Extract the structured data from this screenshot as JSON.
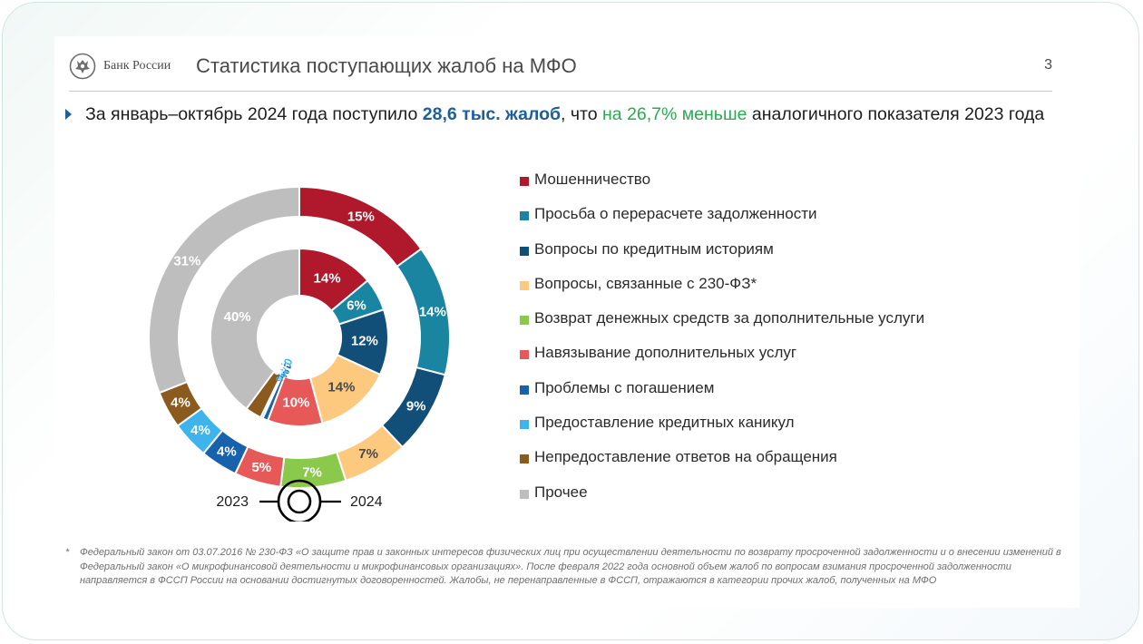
{
  "header": {
    "bank_name": "Банк России",
    "title": "Статистика поступающих жалоб на МФО",
    "page_number": "3"
  },
  "headline": {
    "part1": "За январь–октябрь 2024 года поступило ",
    "part2": "28,6 тыс. жалоб",
    "part3": ", что ",
    "part4": "на 26,7% меньше",
    "part5": " аналогичного показателя 2023 года"
  },
  "chart_data": {
    "type": "pie",
    "variant": "nested-donut",
    "rings": [
      {
        "name": "2023",
        "position": "inner",
        "values": [
          14,
          6,
          12,
          14,
          0,
          10,
          1,
          0.4,
          3,
          40
        ],
        "labels": [
          "14%",
          "6%",
          "12%",
          "14%",
          "",
          "10%",
          "1%",
          "0,4%",
          "3%",
          "40%"
        ]
      },
      {
        "name": "2024",
        "position": "outer",
        "values": [
          15,
          14,
          9,
          7,
          7,
          5,
          4,
          4,
          4,
          31
        ],
        "labels": [
          "15%",
          "14%",
          "9%",
          "7%",
          "7%",
          "5%",
          "4%",
          "4%",
          "4%",
          "31%"
        ]
      }
    ],
    "categories": [
      "Мошенничество",
      "Просьба о перерасчете задолженности",
      "Вопросы по кредитным историям",
      "Вопросы, связанные с 230-ФЗ*",
      "Возврат денежных средств за дополнительные услуги",
      "Навязывание дополнительных услуг",
      "Проблемы с погашением",
      "Предоставление кредитных каникул",
      "Непредоставление ответов на обращения",
      "Прочее"
    ],
    "colors": [
      "#b0182b",
      "#1a85a1",
      "#124f78",
      "#fcc97e",
      "#8bc94c",
      "#e75858",
      "#1761ad",
      "#3db5ec",
      "#8a5a1e",
      "#bebebe"
    ],
    "label_colors": [
      "#ffffff",
      "#ffffff",
      "#ffffff",
      "#4a4a4a",
      "#ffffff",
      "#ffffff",
      "#1761ad",
      "#3db5ec",
      "#ffffff",
      "#ffffff"
    ],
    "legend_placement": "right"
  },
  "ring_legend": {
    "left": "2023",
    "right": "2024"
  },
  "footnote": {
    "mark": "*",
    "text": "Федеральный закон от 03.07.2016 № 230-ФЗ «О защите прав и законных интересов физических лиц при осуществлении деятельности по возврату просроченной задолженности и о внесении изменений в Федеральный закон «О микрофинансовой деятельности и микрофинансовых организациях». После февраля 2022 года основной объем жалоб по вопросам взимания просроченной задолженности направляется в ФССП России на основании достигнутых договоренностей. Жалобы, не перенаправленные в ФССП, отражаются в категории прочих жалоб, полученных на МФО"
  }
}
